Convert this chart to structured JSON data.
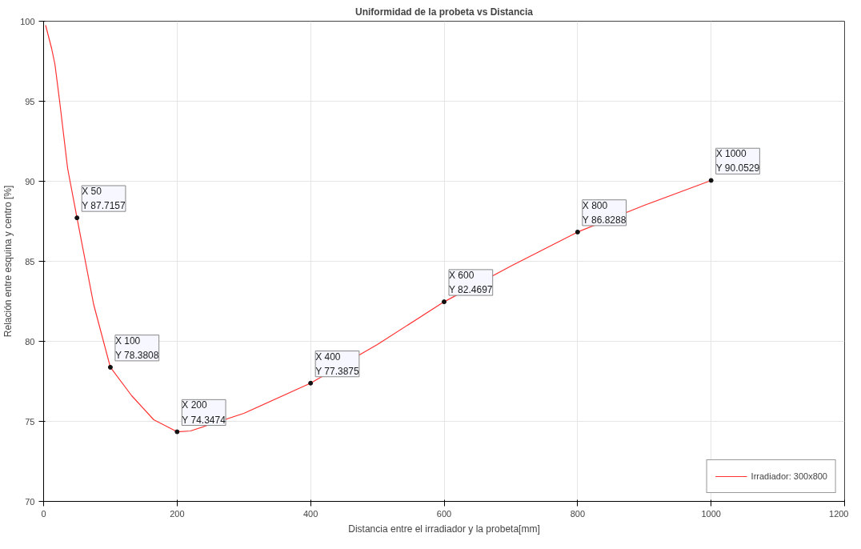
{
  "chart_data": {
    "type": "line",
    "title": "Uniformidad de la probeta vs Distancia",
    "xlabel": "Distancia entre el irradiador y la probeta[mm]",
    "ylabel": "Relación entre esquina y centro [%]",
    "xlim": [
      0,
      1200
    ],
    "ylim": [
      70,
      100
    ],
    "xticks": [
      0,
      200,
      400,
      600,
      800,
      1000,
      1200
    ],
    "yticks": [
      70,
      75,
      80,
      85,
      90,
      95,
      100
    ],
    "grid": true,
    "legend": "bottom right",
    "marker": "none",
    "line_style": "solid",
    "series": [
      {
        "name": "Irradiador: 300x800",
        "color": "#ff3030",
        "x": [
          3,
          12,
          17,
          24,
          36,
          50,
          75,
          100,
          132,
          165,
          200,
          220,
          300,
          400,
          500,
          600,
          700,
          800,
          900,
          1000
        ],
        "values": [
          99.75,
          98.3,
          97.3,
          95.0,
          90.8,
          87.7157,
          82.3,
          78.3808,
          76.6,
          75.1,
          74.3474,
          74.4,
          75.5,
          77.3875,
          79.8,
          82.4697,
          84.7,
          86.8288,
          88.5,
          90.0529
        ]
      }
    ],
    "annotations": [
      {
        "text": "X 50\nY 87.7157",
        "x": 50,
        "y": 87.7157
      },
      {
        "text": "X 100\nY 78.3808",
        "x": 100,
        "y": 78.3808
      },
      {
        "text": "X 200\nY 74.3474",
        "x": 200,
        "y": 74.3474
      },
      {
        "text": "X 400\nY 77.3875",
        "x": 400,
        "y": 77.3875
      },
      {
        "text": "X 600\nY 82.4697",
        "x": 600,
        "y": 82.4697
      },
      {
        "text": "X 800\nY 86.8288",
        "x": 800,
        "y": 86.8288
      },
      {
        "text": "X 1000\nY 90.0529",
        "x": 1000,
        "y": 90.0529
      }
    ]
  }
}
